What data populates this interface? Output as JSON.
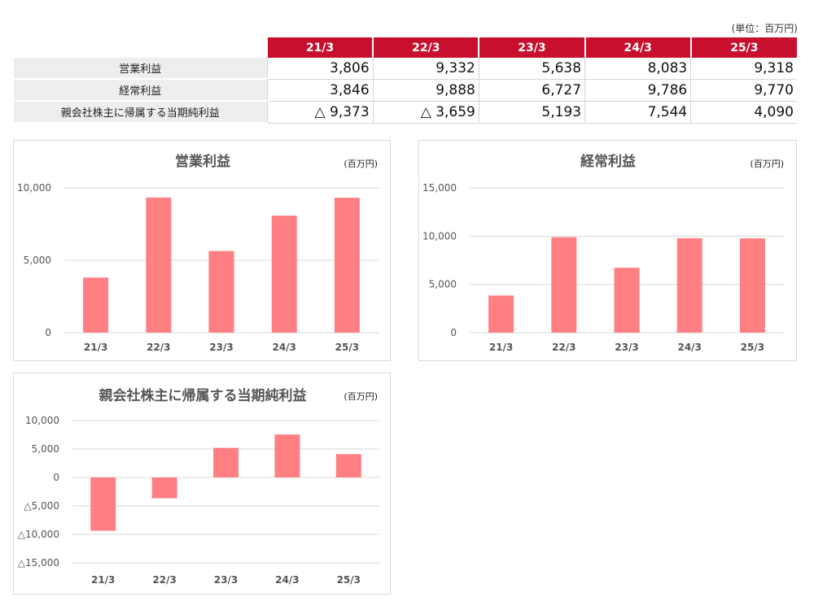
{
  "unit_note": "(単位：百万円)",
  "table": {
    "columns": [
      "21/3",
      "22/3",
      "23/3",
      "24/3",
      "25/3"
    ],
    "rows": [
      {
        "label": "営業利益",
        "values": [
          "3,806",
          "9,332",
          "5,638",
          "8,083",
          "9,318"
        ]
      },
      {
        "label": "経常利益",
        "values": [
          "3,846",
          "9,888",
          "6,727",
          "9,786",
          "9,770"
        ]
      },
      {
        "label": "親会社株主に帰属する当期純利益",
        "values": [
          "△ 9,373",
          "△ 3,659",
          "5,193",
          "7,544",
          "4,090"
        ]
      }
    ]
  },
  "colors": {
    "header": "#c8102e",
    "bar": "#ff7f83",
    "label_bg": "#eeeeee"
  },
  "chart_data": [
    {
      "type": "bar",
      "title": "営業利益",
      "unit": "(百万円)",
      "categories": [
        "21/3",
        "22/3",
        "23/3",
        "24/3",
        "25/3"
      ],
      "values": [
        3806,
        9332,
        5638,
        8083,
        9318
      ],
      "ylim": [
        0,
        10000
      ],
      "yticks": [
        0,
        5000,
        10000
      ],
      "ytick_labels": [
        "0",
        "5,000",
        "10,000"
      ],
      "xlabel": "",
      "ylabel": ""
    },
    {
      "type": "bar",
      "title": "経常利益",
      "unit": "(百万円)",
      "categories": [
        "21/3",
        "22/3",
        "23/3",
        "24/3",
        "25/3"
      ],
      "values": [
        3846,
        9888,
        6727,
        9786,
        9770
      ],
      "ylim": [
        0,
        15000
      ],
      "yticks": [
        0,
        5000,
        10000,
        15000
      ],
      "ytick_labels": [
        "0",
        "5,000",
        "10,000",
        "15,000"
      ],
      "xlabel": "",
      "ylabel": ""
    },
    {
      "type": "bar",
      "title": "親会社株主に帰属する当期純利益",
      "unit": "(百万円)",
      "categories": [
        "21/3",
        "22/3",
        "23/3",
        "24/3",
        "25/3"
      ],
      "values": [
        -9373,
        -3659,
        5193,
        7544,
        4090
      ],
      "ylim": [
        -15000,
        10000
      ],
      "yticks": [
        -15000,
        -10000,
        -5000,
        0,
        5000,
        10000
      ],
      "ytick_labels": [
        "△15,000",
        "△10,000",
        "△5,000",
        "0",
        "5,000",
        "10,000"
      ],
      "xlabel": "",
      "ylabel": ""
    }
  ]
}
